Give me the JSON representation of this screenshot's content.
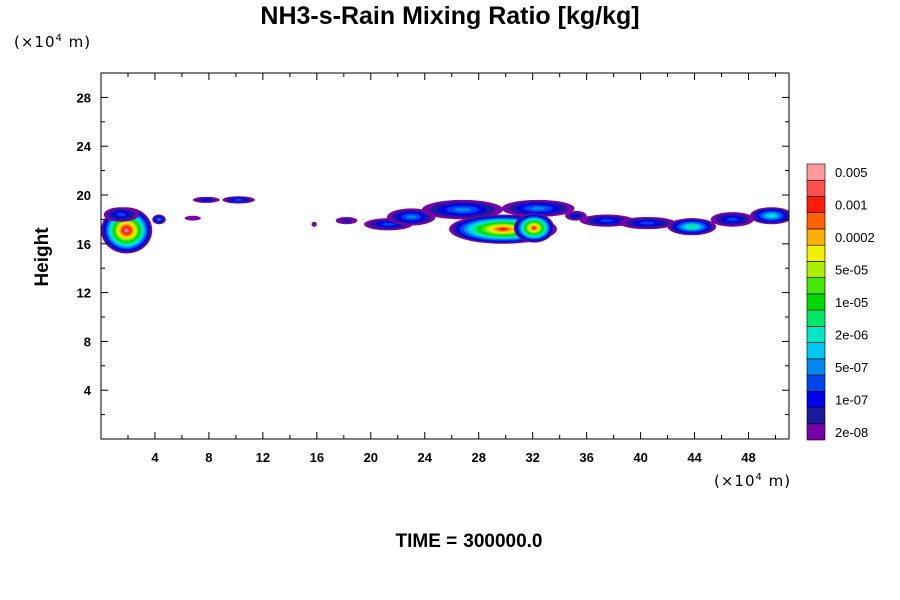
{
  "chart_data": {
    "type": "heatmap",
    "title": "NH3-s-Rain Mixing Ratio [kg/kg]",
    "ylabel": "Height",
    "x_unit": {
      "prefix": "(×10",
      "exp": "4",
      "suffix": " m)"
    },
    "y_unit": {
      "prefix": "(×10",
      "exp": "4",
      "suffix": " m)"
    },
    "xlim": [
      0,
      51
    ],
    "ylim": [
      0,
      30
    ],
    "x_ticks": [
      4,
      8,
      12,
      16,
      20,
      24,
      28,
      32,
      36,
      40,
      44,
      48
    ],
    "y_ticks": [
      4,
      8,
      12,
      16,
      20,
      24,
      28
    ],
    "colorbar": {
      "colors": [
        "#7a00aa",
        "#1a1a9a",
        "#0000ee",
        "#0044ee",
        "#0088f0",
        "#00c8f0",
        "#00e8c8",
        "#00e868",
        "#00d800",
        "#44e800",
        "#a8f000",
        "#f0f000",
        "#ffb000",
        "#ff6000",
        "#ff1a00",
        "#ff5050",
        "#ff9a9a"
      ],
      "labels": [
        "2e-08",
        "1e-07",
        "5e-07",
        "2e-06",
        "1e-05",
        "5e-05",
        "0.0002",
        "0.001",
        "0.005"
      ]
    },
    "blobs": [
      {
        "x": 1.9,
        "y": 17.1,
        "rx": 1.9,
        "ry": 1.9,
        "peak": 16
      },
      {
        "x": 1.5,
        "y": 18.4,
        "rx": 1.3,
        "ry": 0.6,
        "peak": 3
      },
      {
        "x": 4.3,
        "y": 18.0,
        "rx": 0.5,
        "ry": 0.4,
        "peak": 4
      },
      {
        "x": 7.8,
        "y": 19.6,
        "rx": 1.0,
        "ry": 0.25,
        "peak": 2
      },
      {
        "x": 10.2,
        "y": 19.6,
        "rx": 1.2,
        "ry": 0.3,
        "peak": 3
      },
      {
        "x": 6.8,
        "y": 18.1,
        "rx": 0.6,
        "ry": 0.2,
        "peak": 0
      },
      {
        "x": 15.8,
        "y": 17.6,
        "rx": 0.2,
        "ry": 0.2,
        "peak": 0
      },
      {
        "x": 18.2,
        "y": 17.9,
        "rx": 0.8,
        "ry": 0.3,
        "peak": 1
      },
      {
        "x": 21.3,
        "y": 17.6,
        "rx": 1.8,
        "ry": 0.5,
        "peak": 3
      },
      {
        "x": 23.0,
        "y": 18.2,
        "rx": 1.8,
        "ry": 0.7,
        "peak": 4
      },
      {
        "x": 26.8,
        "y": 18.8,
        "rx": 3.0,
        "ry": 0.8,
        "peak": 4
      },
      {
        "x": 32.4,
        "y": 18.9,
        "rx": 2.7,
        "ry": 0.7,
        "peak": 4
      },
      {
        "x": 29.8,
        "y": 17.2,
        "rx": 4.0,
        "ry": 1.2,
        "peak": 14
      },
      {
        "x": 32.1,
        "y": 17.3,
        "rx": 1.5,
        "ry": 1.2,
        "peak": 14
      },
      {
        "x": 35.2,
        "y": 18.3,
        "rx": 0.8,
        "ry": 0.4,
        "peak": 2
      },
      {
        "x": 37.5,
        "y": 17.9,
        "rx": 2.0,
        "ry": 0.5,
        "peak": 3
      },
      {
        "x": 40.5,
        "y": 17.7,
        "rx": 2.1,
        "ry": 0.5,
        "peak": 3
      },
      {
        "x": 43.8,
        "y": 17.4,
        "rx": 1.8,
        "ry": 0.7,
        "peak": 7
      },
      {
        "x": 46.8,
        "y": 18.0,
        "rx": 1.6,
        "ry": 0.6,
        "peak": 3
      },
      {
        "x": 49.7,
        "y": 18.3,
        "rx": 1.6,
        "ry": 0.7,
        "peak": 6
      }
    ]
  },
  "footer": {
    "time_label": "TIME =",
    "time_value": "300000.0"
  }
}
